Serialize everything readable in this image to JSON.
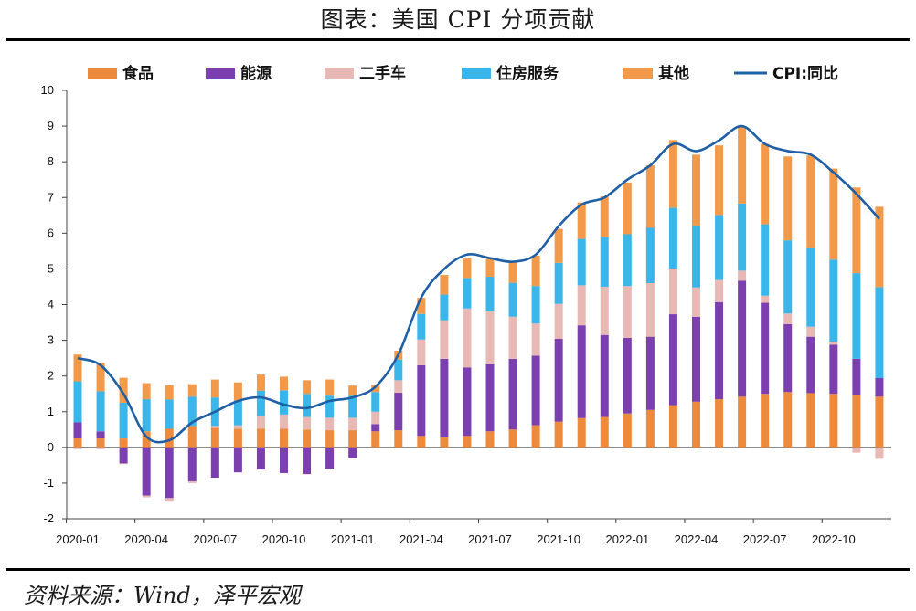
{
  "title": "图表：美国 CPI 分项贡献",
  "source": "资料来源：Wind，泽平宏观",
  "chart_data": {
    "type": "bar",
    "stacked": true,
    "ylim": [
      -2,
      10
    ],
    "yticks": [
      -2,
      -1,
      0,
      1,
      2,
      3,
      4,
      5,
      6,
      7,
      8,
      9,
      10
    ],
    "grid": false,
    "legend_position": "top",
    "categories": [
      "2020-01",
      "2020-02",
      "2020-03",
      "2020-04",
      "2020-05",
      "2020-06",
      "2020-07",
      "2020-08",
      "2020-09",
      "2020-10",
      "2020-11",
      "2020-12",
      "2021-01",
      "2021-02",
      "2021-03",
      "2021-04",
      "2021-05",
      "2021-06",
      "2021-07",
      "2021-08",
      "2021-09",
      "2021-10",
      "2021-11",
      "2021-12",
      "2022-01",
      "2022-02",
      "2022-03",
      "2022-04",
      "2022-05",
      "2022-06",
      "2022-07",
      "2022-08",
      "2022-09",
      "2022-10",
      "2022-11",
      "2022-12"
    ],
    "tick_labels": {
      "2020-01": "2020-01",
      "2020-04": "2020-04",
      "2020-07": "2020-07",
      "2020-10": "2020-10",
      "2021-01": "2021-01",
      "2021-04": "2021-04",
      "2021-07": "2021-07",
      "2021-10": "2021-10",
      "2022-01": "2022-01",
      "2022-04": "2022-04",
      "2022-07": "2022-07",
      "2022-10": "2022-10"
    },
    "series": [
      {
        "name": "食品",
        "kind": "bar",
        "color": "#EE8A3C",
        "values": [
          0.25,
          0.25,
          0.25,
          0.45,
          0.52,
          0.6,
          0.55,
          0.52,
          0.52,
          0.52,
          0.5,
          0.48,
          0.48,
          0.45,
          0.48,
          0.32,
          0.28,
          0.32,
          0.45,
          0.5,
          0.62,
          0.72,
          0.82,
          0.85,
          0.95,
          1.05,
          1.18,
          1.28,
          1.35,
          1.42,
          1.5,
          1.55,
          1.52,
          1.5,
          1.48,
          1.42
        ]
      },
      {
        "name": "能源",
        "kind": "bar",
        "color": "#7B3FB0",
        "values": [
          0.45,
          0.2,
          -0.45,
          -1.35,
          -1.42,
          -0.95,
          -0.85,
          -0.7,
          -0.62,
          -0.72,
          -0.75,
          -0.6,
          -0.3,
          0.2,
          1.05,
          1.98,
          2.2,
          1.92,
          1.88,
          1.98,
          1.95,
          2.32,
          2.6,
          2.3,
          2.12,
          2.05,
          2.55,
          2.38,
          2.72,
          3.25,
          2.55,
          1.9,
          1.58,
          1.38,
          1.0,
          0.52
        ]
      },
      {
        "name": "二手车",
        "kind": "bar",
        "color": "#E8B8B4",
        "values": [
          -0.05,
          -0.05,
          -0.02,
          -0.05,
          -0.1,
          -0.05,
          0.05,
          0.1,
          0.35,
          0.4,
          0.35,
          0.35,
          0.35,
          0.35,
          0.35,
          0.72,
          1.08,
          1.65,
          1.5,
          1.18,
          0.9,
          0.98,
          1.12,
          1.35,
          1.45,
          1.5,
          1.28,
          0.82,
          0.62,
          0.28,
          0.2,
          0.3,
          0.28,
          0.08,
          -0.15,
          -0.32
        ]
      },
      {
        "name": "住房服务",
        "kind": "bar",
        "color": "#3BB6EA",
        "values": [
          1.15,
          1.12,
          1.0,
          0.9,
          0.82,
          0.82,
          0.8,
          0.7,
          0.72,
          0.68,
          0.65,
          0.62,
          0.62,
          0.55,
          0.58,
          0.72,
          0.72,
          0.85,
          0.95,
          0.95,
          1.05,
          1.15,
          1.3,
          1.38,
          1.45,
          1.55,
          1.7,
          1.72,
          1.82,
          1.88,
          2.0,
          2.05,
          2.2,
          2.3,
          2.4,
          2.55
        ]
      },
      {
        "name": "其他",
        "kind": "bar",
        "color": "#F29A4A",
        "values": [
          0.75,
          0.8,
          0.7,
          0.45,
          0.4,
          0.35,
          0.5,
          0.5,
          0.45,
          0.38,
          0.38,
          0.45,
          0.28,
          0.2,
          0.25,
          0.45,
          0.55,
          0.55,
          0.5,
          0.58,
          0.85,
          0.95,
          1.02,
          1.15,
          1.45,
          1.75,
          1.9,
          2.0,
          1.95,
          2.15,
          2.25,
          2.35,
          2.6,
          2.55,
          2.4,
          2.25
        ]
      },
      {
        "name": "CPI:同比",
        "kind": "line",
        "color": "#1F5FA6",
        "values": [
          2.5,
          2.3,
          1.5,
          0.3,
          0.2,
          0.7,
          1.0,
          1.3,
          1.4,
          1.2,
          1.1,
          1.3,
          1.4,
          1.7,
          2.6,
          4.2,
          5.0,
          5.4,
          5.3,
          5.2,
          5.4,
          6.2,
          6.8,
          7.0,
          7.5,
          7.9,
          8.5,
          8.3,
          8.6,
          9.0,
          8.5,
          8.3,
          8.2,
          7.7,
          7.1,
          6.4
        ]
      }
    ]
  }
}
